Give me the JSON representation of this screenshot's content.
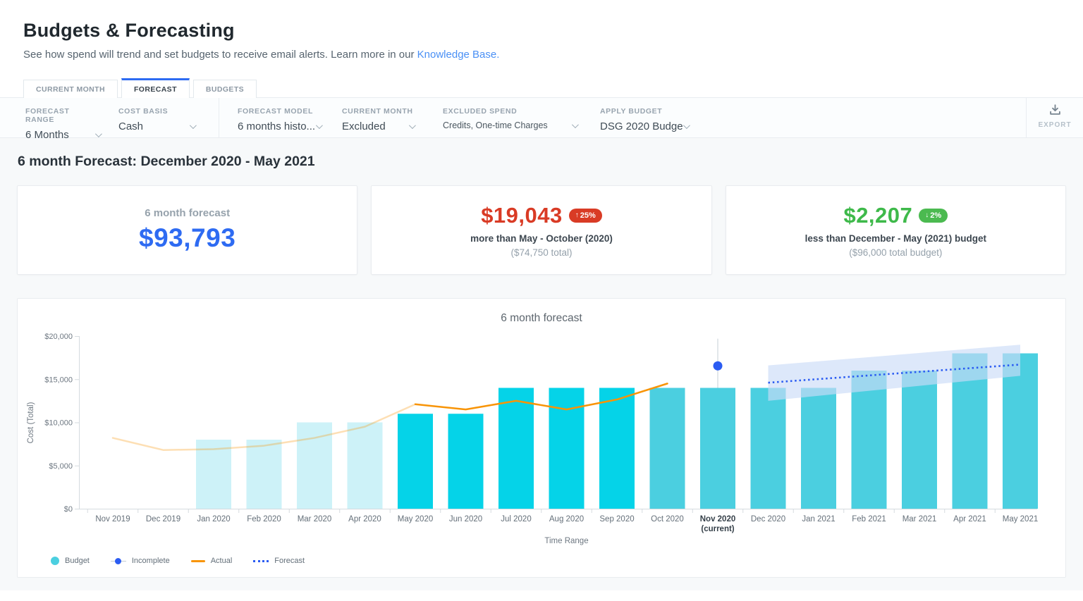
{
  "header": {
    "title": "Budgets & Forecasting",
    "subtitle": "See how spend will trend and set budgets to receive email alerts. Learn more in our",
    "link_label": "Knowledge Base."
  },
  "tabs": [
    {
      "label": "CURRENT MONTH",
      "active": false
    },
    {
      "label": "FORECAST",
      "active": true
    },
    {
      "label": "BUDGETS",
      "active": false
    }
  ],
  "filters": [
    {
      "label": "FORECAST RANGE",
      "value": "6 Months"
    },
    {
      "label": "COST BASIS",
      "value": "Cash"
    },
    {
      "label": "FORECAST MODEL",
      "value": "6 months histo..."
    },
    {
      "label": "CURRENT MONTH",
      "value": "Excluded"
    },
    {
      "label": "EXCLUDED SPEND",
      "value": "Credits, One-time Charges"
    },
    {
      "label": "APPLY BUDGET",
      "value": "DSG 2020 Budge"
    }
  ],
  "export_label": "EXPORT",
  "section_title": "6 month Forecast: December 2020 - May 2021",
  "cards": [
    {
      "label": "6 month forecast",
      "value": "$93,793",
      "value_color": "#2e6bf2"
    },
    {
      "value": "$19,043",
      "value_color": "#d93b25",
      "badge": {
        "arrow": "↑",
        "text": "25%",
        "color": "#d93b25"
      },
      "line1": "more than May - October (2020)",
      "line2": "($74,750 total)"
    },
    {
      "value": "$2,207",
      "value_color": "#3eb94a",
      "badge": {
        "arrow": "↓",
        "text": "2%",
        "color": "#4bba50"
      },
      "line1": "less than December - May (2021) budget",
      "line2": "($96,000 total budget)"
    }
  ],
  "chart_data": {
    "type": "bar",
    "title": "6 month forecast",
    "xlabel": "Time Range",
    "ylabel": "Cost (Total)",
    "ylim": [
      0,
      20000
    ],
    "grid": false,
    "legend_position": "bottom-left",
    "yticks": [
      {
        "value": 0,
        "label": "$0"
      },
      {
        "value": 5000,
        "label": "$5,000"
      },
      {
        "value": 10000,
        "label": "$10,000"
      },
      {
        "value": 15000,
        "label": "$15,000"
      },
      {
        "value": 20000,
        "label": "$20,000"
      }
    ],
    "categories": [
      "Nov 2019",
      "Dec 2019",
      "Jan 2020",
      "Feb 2020",
      "Mar 2020",
      "Apr 2020",
      "May 2020",
      "Jun 2020",
      "Jul 2020",
      "Aug 2020",
      "Sep 2020",
      "Oct 2020",
      "Nov 2020",
      "Dec 2020",
      "Jan 2021",
      "Feb 2021",
      "Mar 2021",
      "Apr 2021",
      "May 2021"
    ],
    "current_index": 12,
    "current_sublabel": "(current)",
    "bar_series": {
      "name": "Budget",
      "values": [
        null,
        null,
        8000,
        8000,
        10000,
        10000,
        11000,
        11000,
        14000,
        14000,
        14000,
        14000,
        14000,
        14000,
        14000,
        16000,
        16000,
        18000,
        18000
      ],
      "states": [
        "none",
        "none",
        "faded",
        "faded",
        "faded",
        "faded",
        "past",
        "past",
        "past",
        "past",
        "past",
        "future",
        "future",
        "future",
        "future",
        "future",
        "future",
        "future",
        "future"
      ],
      "colors": {
        "faded": "#cdf2f8",
        "past": "#05d3e8",
        "future": "#4bcfe0"
      }
    },
    "actual_series": {
      "name": "Actual",
      "color": "#f89406",
      "faded_color": "rgba(248,150,6,0.3)",
      "faded_until_index": 6,
      "values": [
        8200,
        6800,
        6900,
        7300,
        8200,
        9500,
        12100,
        11500,
        12500,
        11500,
        12650,
        14500
      ]
    },
    "incomplete_point": {
      "name": "Incomplete",
      "index": 12,
      "value": 16550,
      "whisker_low": 14000,
      "whisker_high": 19700,
      "color": "#2b5cf2",
      "whisker_color": "#e2e7ea"
    },
    "forecast_series": {
      "name": "Forecast",
      "color": "#2b5cf2",
      "start_index": 13,
      "end_index": 18,
      "start_value": 14600,
      "end_value": 16700,
      "band": {
        "upper_start": 16600,
        "upper_end": 19000,
        "lower_start": 12500,
        "lower_end": 15400,
        "fill": "rgba(203,219,248,0.65)"
      }
    },
    "legend": [
      {
        "label": "Budget",
        "marker": "circle",
        "color": "#4bcfe0"
      },
      {
        "label": "Incomplete",
        "marker": "dotline",
        "color": "#2b5cf2"
      },
      {
        "label": "Actual",
        "marker": "line",
        "color": "#f89406"
      },
      {
        "label": "Forecast",
        "marker": "dotted",
        "color": "#2b5cf2"
      }
    ]
  }
}
